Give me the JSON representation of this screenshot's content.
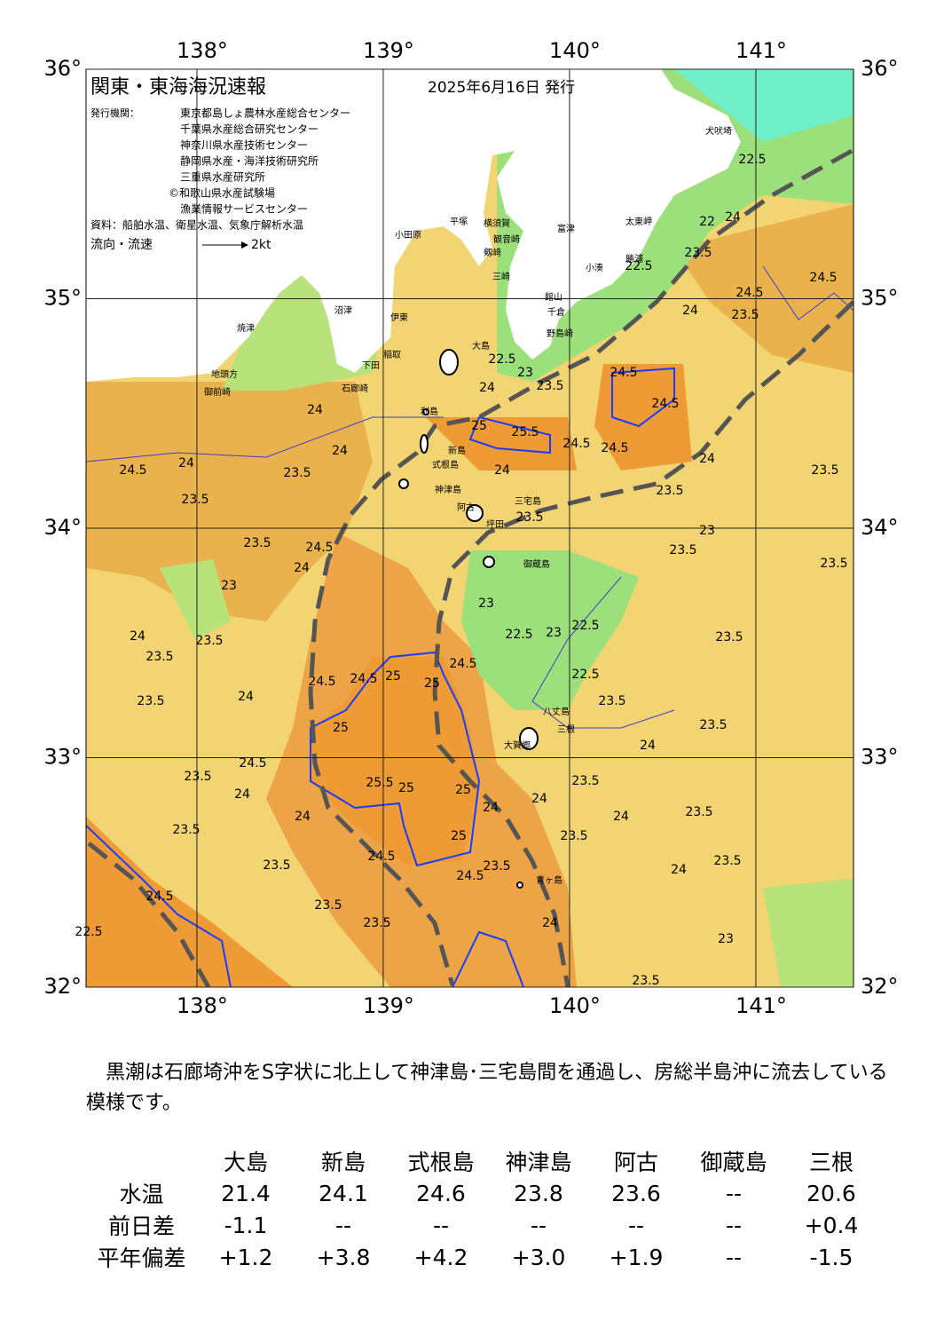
{
  "header": {
    "title": "関東・東海海況速報",
    "date": "2025年6月16日 発行",
    "issuer_label": "発行機関：",
    "issuers": [
      "東京都島しょ農林水産総合センター",
      "千葉県水産総合研究センター",
      "神奈川県水産技術センター",
      "静岡県水産・海洋技術研究所",
      "三重県水産研究所",
      "©和歌山県水産試験場",
      "漁業情報サービスセンター"
    ],
    "source": "資料：船舶水温、衛星水温、気象庁解析水温",
    "legend_label": "流向・流速",
    "legend_scale": "2kt"
  },
  "map": {
    "xlim": [
      137.405,
      141.524
    ],
    "ylim": [
      32,
      36
    ],
    "xticks": [
      {
        "value": 138,
        "label": "138°"
      },
      {
        "value": 139,
        "label": "139°"
      },
      {
        "value": 140,
        "label": "140°"
      },
      {
        "value": 141,
        "label": "141°"
      }
    ],
    "yticks": [
      {
        "value": 32,
        "label": "32°"
      },
      {
        "value": 33,
        "label": "33°"
      },
      {
        "value": 34,
        "label": "34°"
      },
      {
        "value": 35,
        "label": "35°"
      },
      {
        "value": 36,
        "label": "36°"
      }
    ],
    "place_names": [
      "犬吠埼",
      "太東岬",
      "勝浦",
      "小湊",
      "富津",
      "館山",
      "千倉",
      "野島崎",
      "平塚",
      "横須賀",
      "観音崎",
      "剱崎",
      "三崎",
      "小田原",
      "沼津",
      "伊東",
      "稲取",
      "下田",
      "石廊崎",
      "焼津",
      "地頭方",
      "御前崎",
      "大島",
      "利島",
      "新島",
      "式根島",
      "神津島",
      "三宅島",
      "阿古",
      "坪田",
      "御蔵島",
      "八丈島",
      "大賀郷",
      "三根",
      "青ヶ島"
    ],
    "contour_labels": [
      "24.5",
      "23.5",
      "24",
      "22.5",
      "22",
      "23.5",
      "22.5",
      "24",
      "24.5",
      "23.5",
      "22.5",
      "23",
      "24.5",
      "24.5",
      "25.5",
      "25",
      "24.5",
      "24.5",
      "24",
      "23.5",
      "23.5",
      "23.5",
      "24",
      "24",
      "24",
      "24",
      "24",
      "24.5",
      "23.5",
      "23.5",
      "23.5",
      "24.5",
      "24",
      "23.5",
      "23",
      "23.5",
      "23",
      "23",
      "22.5",
      "23",
      "22.5",
      "22.5",
      "23.5",
      "24",
      "23.5",
      "23.5",
      "23.5",
      "24",
      "24.5",
      "24.5",
      "25",
      "25",
      "24.5",
      "23.5",
      "23.5",
      "25",
      "24",
      "25.5",
      "25",
      "25",
      "24.5",
      "23.5",
      "24",
      "24",
      "24",
      "23.5",
      "23.5",
      "24",
      "24",
      "25",
      "23.5",
      "24.5",
      "24.5",
      "23.5",
      "23.5",
      "23.5",
      "24",
      "23.5",
      "24.5",
      "23.5",
      "23.5",
      "23",
      "24",
      "23.5",
      "22.5"
    ]
  },
  "summary": "黒潮は石廊埼沖をS字状に北上して神津島･三宅島間を通過し、房総半島沖に流去している模様です。",
  "table": {
    "columns": [
      "大島",
      "新島",
      "式根島",
      "神津島",
      "阿古",
      "御蔵島",
      "三根"
    ],
    "rows": [
      {
        "label": "水温",
        "values": [
          "21.4",
          "24.1",
          "24.6",
          "23.8",
          "23.6",
          "--",
          "20.6"
        ]
      },
      {
        "label": "前日差",
        "values": [
          "-1.1",
          "--",
          "--",
          "--",
          "--",
          "--",
          "+0.4"
        ]
      },
      {
        "label": "平年偏差",
        "values": [
          "+1.2",
          "+3.8",
          "+4.2",
          "+3.0",
          "+1.9",
          "--",
          "-1.5"
        ]
      }
    ]
  }
}
